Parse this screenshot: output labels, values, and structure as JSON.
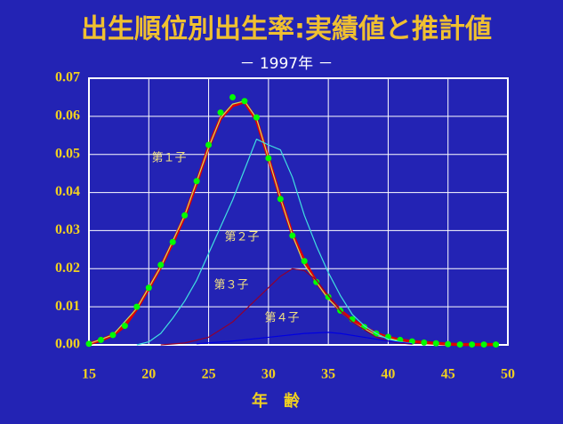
{
  "chart_data": {
    "type": "line",
    "title": "出生順位別出生率:実績値と推計値",
    "subtitle": "－ 1997年 －",
    "x_label": "年　齢",
    "xlim": [
      15,
      50
    ],
    "xticks": [
      15,
      20,
      25,
      30,
      35,
      40,
      45,
      50
    ],
    "ylim": [
      0,
      0.07
    ],
    "yticks": [
      {
        "value": 0,
        "label": "0.00"
      },
      0.01,
      0.02,
      0.03,
      0.04,
      0.05,
      0.06,
      0.07
    ],
    "grid": true,
    "series": [
      {
        "color": "#e00000",
        "style": "line",
        "x": [
          15,
          16,
          17,
          18,
          19,
          20,
          21,
          22,
          23,
          24,
          25,
          26,
          27,
          28,
          29,
          30,
          31,
          32,
          33,
          34,
          35,
          36,
          37,
          38,
          39,
          40,
          41,
          42,
          43,
          44,
          45,
          46,
          47,
          48,
          49
        ],
        "values": [
          0.0003,
          0.0012,
          0.0026,
          0.005,
          0.0095,
          0.0148,
          0.0205,
          0.0268,
          0.0338,
          0.0425,
          0.052,
          0.0595,
          0.0628,
          0.0638,
          0.059,
          0.049,
          0.0385,
          0.029,
          0.022,
          0.0165,
          0.0125,
          0.009,
          0.0066,
          0.0047,
          0.003,
          0.002,
          0.0013,
          0.0009,
          0.0006,
          0.0004,
          0.0002,
          0.0001,
          0.0001,
          0.0001,
          0.0001
        ]
      },
      {
        "name": "第１子",
        "color": "#c8e060",
        "style": "line",
        "x": [
          15,
          17,
          19,
          21,
          23,
          25,
          26,
          27,
          28,
          29,
          30,
          31,
          32,
          33,
          35,
          37,
          39,
          41
        ],
        "values": [
          0.0003,
          0.0026,
          0.0096,
          0.0205,
          0.034,
          0.0518,
          0.0596,
          0.0632,
          0.064,
          0.0595,
          0.049,
          0.0385,
          0.0288,
          0.021,
          0.012,
          0.006,
          0.0025,
          0.001
        ]
      },
      {
        "color": "#00ff00",
        "style": "dots",
        "x": [
          15,
          16,
          17,
          18,
          19,
          20,
          21,
          22,
          23,
          24,
          25,
          26,
          27,
          28,
          29,
          30,
          31,
          32,
          33,
          34,
          35,
          36,
          37,
          38,
          39,
          40,
          41,
          42,
          43,
          44,
          45,
          46,
          47,
          48,
          49
        ],
        "values": [
          0.0003,
          0.0013,
          0.0026,
          0.005,
          0.01,
          0.015,
          0.021,
          0.027,
          0.034,
          0.043,
          0.0525,
          0.061,
          0.065,
          0.064,
          0.0597,
          0.049,
          0.0383,
          0.0287,
          0.022,
          0.0165,
          0.0126,
          0.009,
          0.0067,
          0.0047,
          0.003,
          0.0021,
          0.0013,
          0.0009,
          0.0006,
          0.0004,
          0.0002,
          0.0001,
          0.0001,
          0.0001,
          0.0001
        ]
      },
      {
        "name": "第２子",
        "color": "#40e0e0",
        "style": "line",
        "x": [
          19,
          20,
          21,
          22,
          23,
          24,
          25,
          26,
          27,
          28,
          29,
          30,
          31,
          32,
          33,
          34,
          35,
          36,
          37,
          38,
          39,
          40,
          41,
          42
        ],
        "values": [
          0,
          0.0008,
          0.003,
          0.007,
          0.0115,
          0.017,
          0.024,
          0.031,
          0.038,
          0.046,
          0.054,
          0.0525,
          0.0512,
          0.044,
          0.034,
          0.026,
          0.019,
          0.013,
          0.008,
          0.005,
          0.003,
          0.0015,
          0.0008,
          0.0004
        ]
      },
      {
        "name": "第３子",
        "color": "#900030",
        "style": "line",
        "x": [
          21,
          23,
          25,
          27,
          29,
          31,
          32,
          33,
          34,
          35,
          36,
          37,
          38,
          39,
          40,
          41,
          42
        ],
        "values": [
          0,
          0.0005,
          0.002,
          0.006,
          0.012,
          0.018,
          0.02,
          0.0195,
          0.017,
          0.013,
          0.009,
          0.006,
          0.004,
          0.002,
          0.001,
          0.0005,
          0.0002
        ]
      },
      {
        "name": "第４子",
        "color": "#0000e0",
        "style": "line",
        "x": [
          24,
          27,
          30,
          33,
          35,
          36,
          38,
          40,
          42
        ],
        "values": [
          0.0003,
          0.001,
          0.002,
          0.003,
          0.0033,
          0.003,
          0.002,
          0.001,
          0.0003
        ]
      }
    ]
  }
}
